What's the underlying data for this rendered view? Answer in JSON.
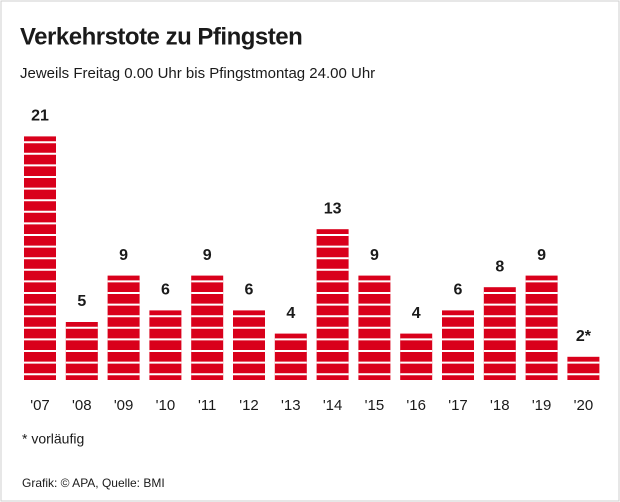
{
  "chart_data": {
    "type": "bar",
    "title": "Verkehrstote zu Pfingsten",
    "subtitle": "Jeweils Freitag 0.00 Uhr bis Pfingstmontag 24.00 Uhr",
    "categories": [
      "'07",
      "'08",
      "'09",
      "'10",
      "'11",
      "'12",
      "'13",
      "'14",
      "'15",
      "'16",
      "'17",
      "'18",
      "'19",
      "'20"
    ],
    "values": [
      21,
      5,
      9,
      6,
      9,
      6,
      4,
      13,
      9,
      4,
      6,
      8,
      9,
      2
    ],
    "value_labels": [
      "21",
      "5",
      "9",
      "6",
      "9",
      "6",
      "4",
      "13",
      "9",
      "4",
      "6",
      "8",
      "9",
      "2*"
    ],
    "color": "#d9001b",
    "note": "* vorläufig",
    "source": "Grafik: © APA, Quelle: BMI"
  }
}
